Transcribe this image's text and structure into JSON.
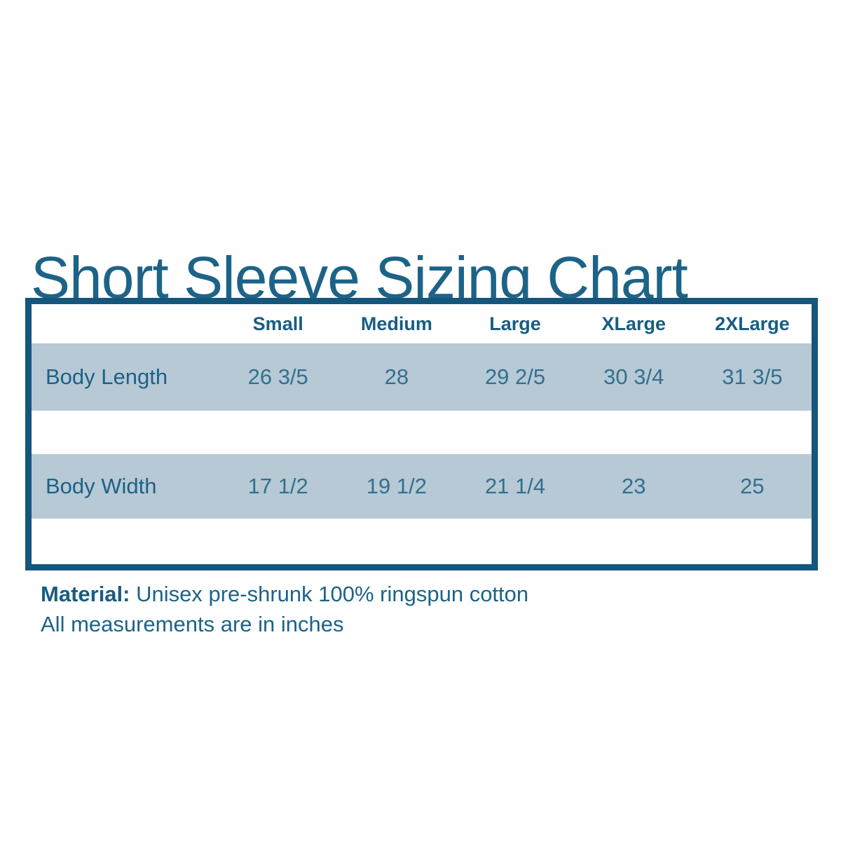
{
  "title": "Short Sleeve Sizing Chart",
  "table": {
    "columns": [
      "Small",
      "Medium",
      "Large",
      "XLarge",
      "2XLarge"
    ],
    "rows": [
      {
        "label": "Body Length",
        "values": [
          "26 3/5",
          "28",
          "29 2/5",
          "30 3/4",
          "31 3/5"
        ]
      },
      {
        "label": "Body Width",
        "values": [
          "17 1/2",
          "19 1/2",
          "21 1/4",
          "23",
          "25"
        ]
      }
    ]
  },
  "footer": {
    "material_label": "Material:",
    "material_value": "Unisex pre-shrunk 100% ringspun cotton",
    "note": "All measurements are in inches"
  },
  "colors": {
    "title_text": "#1d6387",
    "header_text": "#175d82",
    "value_text": "#31708f",
    "table_border": "#15567d",
    "row_band": "#b7c9d5",
    "background": "#ffffff"
  },
  "chart_data": {
    "type": "table",
    "title": "Short Sleeve Sizing Chart",
    "columns": [
      "",
      "Small",
      "Medium",
      "Large",
      "XLarge",
      "2XLarge"
    ],
    "rows": [
      [
        "Body Length",
        "26 3/5",
        "28",
        "29 2/5",
        "30 3/4",
        "31 3/5"
      ],
      [
        "Body Width",
        "17 1/2",
        "19 1/2",
        "21 1/4",
        "23",
        "25"
      ]
    ],
    "units": "inches",
    "notes": [
      "Material: Unisex pre-shrunk 100% ringspun cotton",
      "All measurements are in inches"
    ]
  }
}
